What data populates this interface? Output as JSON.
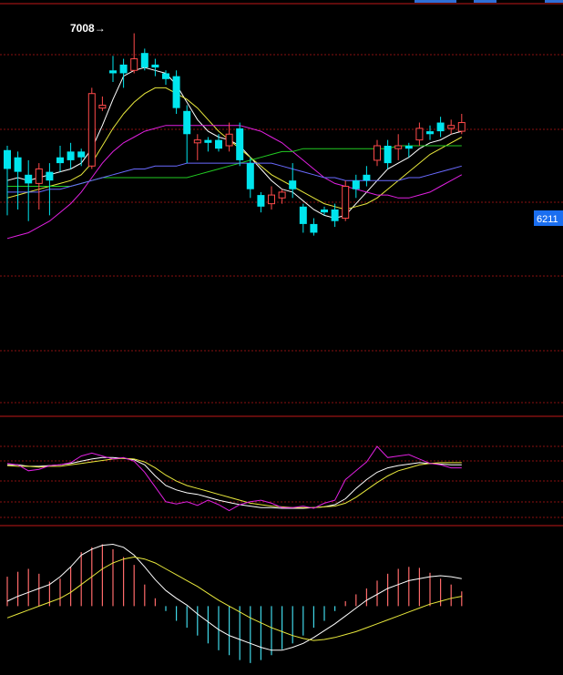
{
  "colors": {
    "background": "#000000",
    "grid": "#8a1010",
    "separator": "#c01818",
    "bull": "#ff4a4a",
    "bear": "#00e5ee",
    "white_line": "#ffffff",
    "yellow_line": "#e8e83c",
    "magenta_line": "#e020e0",
    "green_line": "#22cc22",
    "blue_line": "#6a6aff",
    "price_tag_bg": "#1a6ef0",
    "hist_pos": "#ff6a6a",
    "hist_neg": "#40d8e8"
  },
  "chart_data": [
    {
      "type": "candlestick",
      "panel": "price",
      "annotation_high": "7008→",
      "price_tag": "6211",
      "candles": [
        {
          "o": 6540,
          "c": 6605,
          "h": 6620,
          "l": 6380,
          "dir": "down"
        },
        {
          "o": 6580,
          "c": 6530,
          "h": 6600,
          "l": 6400,
          "dir": "down"
        },
        {
          "o": 6520,
          "c": 6490,
          "h": 6570,
          "l": 6360,
          "dir": "down"
        },
        {
          "o": 6490,
          "c": 6540,
          "h": 6560,
          "l": 6400,
          "dir": "up"
        },
        {
          "o": 6500,
          "c": 6530,
          "h": 6560,
          "l": 6380,
          "dir": "down"
        },
        {
          "o": 6560,
          "c": 6580,
          "h": 6620,
          "l": 6530,
          "dir": "down"
        },
        {
          "o": 6570,
          "c": 6600,
          "h": 6630,
          "l": 6540,
          "dir": "down"
        },
        {
          "o": 6600,
          "c": 6580,
          "h": 6610,
          "l": 6550,
          "dir": "down"
        },
        {
          "o": 6550,
          "c": 6800,
          "h": 6820,
          "l": 6540,
          "dir": "up"
        },
        {
          "o": 6750,
          "c": 6760,
          "h": 6790,
          "l": 6740,
          "dir": "up"
        },
        {
          "o": 6870,
          "c": 6880,
          "h": 6930,
          "l": 6840,
          "dir": "down"
        },
        {
          "o": 6900,
          "c": 6870,
          "h": 6920,
          "l": 6820,
          "dir": "down"
        },
        {
          "o": 6880,
          "c": 6920,
          "h": 7008,
          "l": 6870,
          "dir": "up"
        },
        {
          "o": 6940,
          "c": 6890,
          "h": 6955,
          "l": 6880,
          "dir": "down"
        },
        {
          "o": 6900,
          "c": 6890,
          "h": 6920,
          "l": 6860,
          "dir": "down"
        },
        {
          "o": 6870,
          "c": 6850,
          "h": 6880,
          "l": 6830,
          "dir": "down"
        },
        {
          "o": 6860,
          "c": 6750,
          "h": 6880,
          "l": 6730,
          "dir": "down"
        },
        {
          "o": 6740,
          "c": 6660,
          "h": 6760,
          "l": 6560,
          "dir": "down"
        },
        {
          "o": 6640,
          "c": 6630,
          "h": 6660,
          "l": 6570,
          "dir": "up"
        },
        {
          "o": 6640,
          "c": 6630,
          "h": 6650,
          "l": 6600,
          "dir": "down"
        },
        {
          "o": 6640,
          "c": 6610,
          "h": 6660,
          "l": 6600,
          "dir": "down"
        },
        {
          "o": 6620,
          "c": 6660,
          "h": 6700,
          "l": 6600,
          "dir": "up"
        },
        {
          "o": 6680,
          "c": 6570,
          "h": 6700,
          "l": 6550,
          "dir": "down"
        },
        {
          "o": 6560,
          "c": 6470,
          "h": 6580,
          "l": 6440,
          "dir": "down"
        },
        {
          "o": 6450,
          "c": 6410,
          "h": 6460,
          "l": 6390,
          "dir": "down"
        },
        {
          "o": 6420,
          "c": 6450,
          "h": 6480,
          "l": 6400,
          "dir": "up"
        },
        {
          "o": 6440,
          "c": 6460,
          "h": 6470,
          "l": 6420,
          "dir": "up"
        },
        {
          "o": 6500,
          "c": 6470,
          "h": 6560,
          "l": 6440,
          "dir": "down"
        },
        {
          "o": 6410,
          "c": 6350,
          "h": 6420,
          "l": 6320,
          "dir": "down"
        },
        {
          "o": 6350,
          "c": 6320,
          "h": 6370,
          "l": 6310,
          "dir": "down"
        },
        {
          "o": 6390,
          "c": 6400,
          "h": 6410,
          "l": 6380,
          "dir": "down"
        },
        {
          "o": 6400,
          "c": 6360,
          "h": 6420,
          "l": 6340,
          "dir": "down"
        },
        {
          "o": 6370,
          "c": 6480,
          "h": 6500,
          "l": 6360,
          "dir": "up"
        },
        {
          "o": 6500,
          "c": 6470,
          "h": 6520,
          "l": 6440,
          "dir": "down"
        },
        {
          "o": 6520,
          "c": 6500,
          "h": 6550,
          "l": 6480,
          "dir": "down"
        },
        {
          "o": 6570,
          "c": 6620,
          "h": 6640,
          "l": 6550,
          "dir": "up"
        },
        {
          "o": 6620,
          "c": 6560,
          "h": 6640,
          "l": 6540,
          "dir": "down"
        },
        {
          "o": 6610,
          "c": 6620,
          "h": 6660,
          "l": 6570,
          "dir": "up"
        },
        {
          "o": 6620,
          "c": 6610,
          "h": 6630,
          "l": 6580,
          "dir": "down"
        },
        {
          "o": 6640,
          "c": 6680,
          "h": 6700,
          "l": 6620,
          "dir": "up"
        },
        {
          "o": 6670,
          "c": 6660,
          "h": 6690,
          "l": 6640,
          "dir": "down"
        },
        {
          "o": 6700,
          "c": 6670,
          "h": 6720,
          "l": 6650,
          "dir": "down"
        },
        {
          "o": 6690,
          "c": 6680,
          "h": 6710,
          "l": 6660,
          "dir": "up"
        },
        {
          "o": 6700,
          "c": 6670,
          "h": 6730,
          "l": 6660,
          "dir": "up"
        }
      ],
      "ma": [
        {
          "color": "white_line",
          "values": [
            6500,
            6510,
            6500,
            6510,
            6520,
            6530,
            6540,
            6560,
            6610,
            6690,
            6780,
            6860,
            6880,
            6890,
            6880,
            6870,
            6830,
            6770,
            6710,
            6670,
            6650,
            6640,
            6620,
            6580,
            6540,
            6500,
            6470,
            6460,
            6430,
            6400,
            6380,
            6370,
            6380,
            6420,
            6460,
            6500,
            6540,
            6560,
            6580,
            6610,
            6630,
            6640,
            6660,
            6670
          ]
        },
        {
          "color": "yellow_line",
          "values": [
            6440,
            6450,
            6460,
            6470,
            6480,
            6490,
            6500,
            6520,
            6560,
            6620,
            6680,
            6730,
            6770,
            6800,
            6820,
            6820,
            6800,
            6780,
            6750,
            6710,
            6670,
            6640,
            6610,
            6580,
            6550,
            6520,
            6500,
            6480,
            6460,
            6440,
            6420,
            6410,
            6400,
            6410,
            6420,
            6440,
            6470,
            6500,
            6530,
            6560,
            6590,
            6610,
            6630,
            6650
          ]
        },
        {
          "color": "magenta_line",
          "values": [
            6300,
            6310,
            6320,
            6340,
            6360,
            6390,
            6420,
            6460,
            6510,
            6560,
            6600,
            6630,
            6650,
            6670,
            6680,
            6690,
            6690,
            6690,
            6690,
            6690,
            6690,
            6690,
            6690,
            6680,
            6670,
            6650,
            6630,
            6600,
            6570,
            6540,
            6510,
            6490,
            6480,
            6470,
            6460,
            6450,
            6450,
            6440,
            6440,
            6450,
            6460,
            6480,
            6500,
            6520
          ]
        },
        {
          "color": "green_line",
          "values": [
            6480,
            6480,
            6480,
            6480,
            6480,
            6480,
            6480,
            6490,
            6500,
            6510,
            6510,
            6510,
            6510,
            6510,
            6510,
            6510,
            6510,
            6510,
            6520,
            6530,
            6540,
            6550,
            6560,
            6570,
            6580,
            6590,
            6600,
            6600,
            6610,
            6610,
            6610,
            6610,
            6610,
            6610,
            6610,
            6610,
            6610,
            6620,
            6620,
            6620,
            6620,
            6620,
            6620,
            6620
          ]
        },
        {
          "color": "blue_line",
          "values": [
            6460,
            6460,
            6460,
            6460,
            6470,
            6470,
            6480,
            6490,
            6500,
            6510,
            6520,
            6530,
            6540,
            6540,
            6550,
            6550,
            6550,
            6560,
            6560,
            6560,
            6560,
            6560,
            6560,
            6560,
            6560,
            6560,
            6550,
            6540,
            6530,
            6520,
            6510,
            6510,
            6500,
            6500,
            6500,
            6500,
            6500,
            6500,
            6510,
            6510,
            6520,
            6530,
            6540,
            6550
          ]
        }
      ],
      "ylim": [
        6180,
        7060
      ]
    },
    {
      "type": "line",
      "panel": "kdj",
      "ylim": [
        -10,
        110
      ],
      "series": [
        {
          "color": "white_line",
          "values": [
            70,
            70,
            68,
            68,
            69,
            70,
            72,
            75,
            78,
            80,
            80,
            79,
            77,
            70,
            55,
            42,
            36,
            32,
            30,
            26,
            22,
            19,
            16,
            14,
            12,
            12,
            11,
            11,
            11,
            12,
            13,
            16,
            24,
            38,
            50,
            60,
            66,
            69,
            71,
            73,
            72,
            71,
            70,
            70
          ]
        },
        {
          "color": "yellow_line",
          "values": [
            69,
            68,
            68,
            67,
            68,
            68,
            70,
            72,
            74,
            76,
            78,
            79,
            78,
            74,
            66,
            56,
            48,
            42,
            38,
            34,
            30,
            26,
            22,
            18,
            16,
            14,
            13,
            12,
            12,
            12,
            13,
            14,
            18,
            26,
            36,
            46,
            55,
            62,
            66,
            70,
            72,
            73,
            73,
            73
          ]
        },
        {
          "color": "magenta_line",
          "values": [
            72,
            70,
            62,
            64,
            69,
            70,
            73,
            82,
            86,
            82,
            78,
            80,
            75,
            60,
            40,
            20,
            17,
            20,
            15,
            22,
            16,
            8,
            16,
            20,
            22,
            18,
            12,
            12,
            14,
            11,
            18,
            22,
            50,
            62,
            74,
            95,
            80,
            82,
            84,
            78,
            72,
            70,
            66,
            66
          ]
        }
      ]
    },
    {
      "type": "bar+line",
      "panel": "macd",
      "ylim": [
        -60,
        70
      ],
      "histogram": [
        30,
        35,
        38,
        33,
        25,
        28,
        40,
        55,
        60,
        63,
        58,
        50,
        42,
        22,
        8,
        -5,
        -15,
        -22,
        -30,
        -38,
        -45,
        -50,
        -55,
        -58,
        -55,
        -50,
        -44,
        -38,
        -30,
        -22,
        -15,
        -5,
        5,
        12,
        18,
        26,
        33,
        38,
        40,
        39,
        34,
        28,
        22,
        15
      ],
      "series": [
        {
          "color": "white_line",
          "values": [
            5,
            10,
            14,
            18,
            22,
            30,
            40,
            52,
            58,
            62,
            63,
            60,
            52,
            40,
            27,
            16,
            8,
            1,
            -8,
            -16,
            -24,
            -30,
            -34,
            -38,
            -42,
            -45,
            -45,
            -42,
            -38,
            -32,
            -25,
            -18,
            -10,
            -2,
            6,
            12,
            18,
            22,
            26,
            28,
            30,
            31,
            30,
            28
          ]
        },
        {
          "color": "yellow_line",
          "values": [
            -12,
            -8,
            -4,
            0,
            4,
            8,
            14,
            22,
            30,
            38,
            44,
            48,
            50,
            48,
            44,
            38,
            32,
            26,
            20,
            13,
            6,
            0,
            -6,
            -12,
            -17,
            -22,
            -26,
            -30,
            -33,
            -35,
            -34,
            -32,
            -29,
            -26,
            -22,
            -18,
            -14,
            -10,
            -6,
            -2,
            2,
            5,
            8,
            10
          ]
        }
      ]
    }
  ]
}
